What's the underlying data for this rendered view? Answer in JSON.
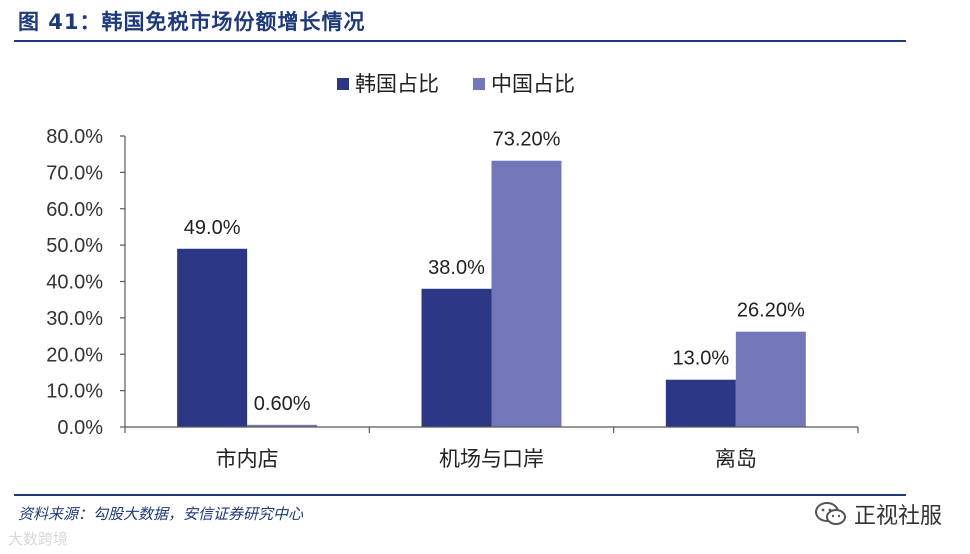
{
  "figure": {
    "title": "图 41：韩国免税市场份额增长情况",
    "source": "资料来源：勾股大数据，安信证券研究中心"
  },
  "watermarks": {
    "left": "大数跨境",
    "right": "正视社服",
    "right_icon": "wechat-icon"
  },
  "colors": {
    "korea": "#2b3784",
    "china": "#7377b9",
    "accent": "#1f3a7a",
    "axis": "#595959"
  },
  "chart_data": {
    "type": "bar",
    "categories": [
      "市内店",
      "机场与口岸",
      "离岛"
    ],
    "series": [
      {
        "name": "韩国占比",
        "values": [
          49.0,
          38.0,
          13.0
        ],
        "labels": [
          "49.0%",
          "38.0%",
          "13.0%"
        ]
      },
      {
        "name": "中国占比",
        "values": [
          0.6,
          73.2,
          26.2
        ],
        "labels": [
          "0.60%",
          "73.20%",
          "26.20%"
        ]
      }
    ],
    "ylim": [
      0,
      80
    ],
    "yticks": [
      0,
      10,
      20,
      30,
      40,
      50,
      60,
      70,
      80
    ],
    "ytick_labels": [
      "0.0%",
      "10.0%",
      "20.0%",
      "30.0%",
      "40.0%",
      "50.0%",
      "60.0%",
      "70.0%",
      "80.0%"
    ],
    "legend_position": "top-center",
    "grid": false
  }
}
